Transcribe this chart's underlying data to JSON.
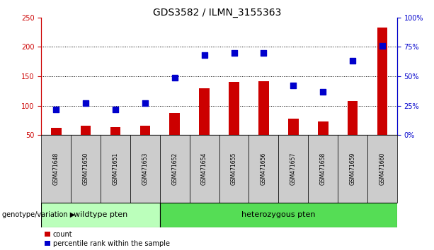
{
  "title": "GDS3582 / ILMN_3155363",
  "samples": [
    "GSM471648",
    "GSM471650",
    "GSM471651",
    "GSM471653",
    "GSM471652",
    "GSM471654",
    "GSM471655",
    "GSM471656",
    "GSM471657",
    "GSM471658",
    "GSM471659",
    "GSM471660"
  ],
  "counts": [
    62,
    66,
    63,
    66,
    88,
    130,
    140,
    141,
    78,
    73,
    108,
    233
  ],
  "percentiles": [
    22,
    27,
    22,
    27,
    49,
    68,
    70,
    70,
    42,
    37,
    63,
    76
  ],
  "wt_indices": [
    0,
    1,
    2,
    3
  ],
  "het_indices": [
    4,
    5,
    6,
    7,
    8,
    9,
    10,
    11
  ],
  "ylim_left": [
    50,
    250
  ],
  "ylim_right": [
    0,
    100
  ],
  "left_yticks": [
    50,
    100,
    150,
    200,
    250
  ],
  "right_yticks": [
    0,
    25,
    50,
    75,
    100
  ],
  "bar_color": "#cc0000",
  "dot_color": "#0000cc",
  "wildtype_color": "#bbffbb",
  "heterozygous_color": "#55dd55",
  "left_axis_color": "#cc0000",
  "right_axis_color": "#0000cc",
  "grid_color": "#000000",
  "bar_width": 0.35,
  "dot_size": 40,
  "label_box_color": "#cccccc",
  "title_fontsize": 10,
  "tick_fontsize": 7,
  "sample_fontsize": 5.5,
  "group_fontsize": 8,
  "legend_fontsize": 7,
  "genotype_fontsize": 7,
  "grid_yticks": [
    100,
    150,
    200
  ]
}
